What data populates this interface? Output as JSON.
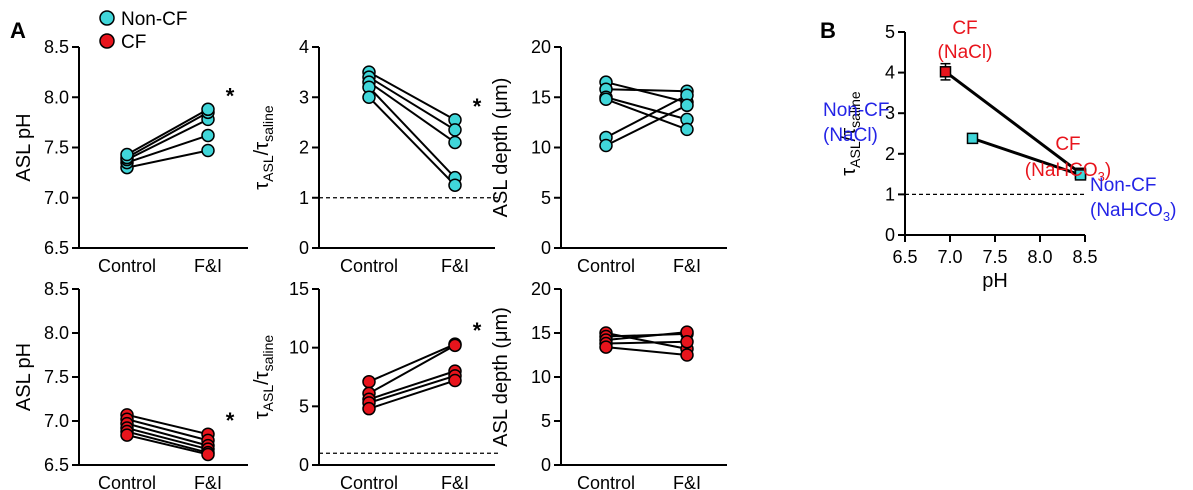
{
  "panel_labels": [
    "A",
    "B"
  ],
  "legend": {
    "items": [
      {
        "label": "Non-CF",
        "color": "#40d6d9"
      },
      {
        "label": "CF",
        "color": "#e8141c"
      }
    ]
  },
  "colors": {
    "noncf": "#40d6d9",
    "cf": "#e8141c",
    "blue_label": "#2424e6",
    "red_label": "#e8141c",
    "line": "#000000"
  },
  "tau_label": {
    "base": "τ",
    "sub1": "ASL",
    "slash": "/τ",
    "sub2": "saline"
  },
  "chart_data": [
    {
      "type": "line",
      "group": "Non-CF",
      "categories": [
        "Control",
        "F&I"
      ],
      "ylabel": "ASL pH",
      "ylim": [
        6.5,
        8.5
      ],
      "yticks": [
        "6.5",
        "7.0",
        "7.5",
        "8.0",
        "8.5"
      ],
      "significance": "*",
      "reference_line": null,
      "series": [
        {
          "values": [
            7.3,
            7.47
          ]
        },
        {
          "values": [
            7.35,
            7.62
          ]
        },
        {
          "values": [
            7.38,
            7.78
          ]
        },
        {
          "values": [
            7.4,
            7.85
          ]
        },
        {
          "values": [
            7.43,
            7.88
          ]
        }
      ]
    },
    {
      "type": "line",
      "group": "Non-CF",
      "categories": [
        "Control",
        "F&I"
      ],
      "ylabel": "τASL/τsaline",
      "ylim": [
        0,
        4
      ],
      "yticks": [
        "0",
        "1",
        "2",
        "3",
        "4"
      ],
      "significance": "*",
      "reference_line": 1,
      "series": [
        {
          "values": [
            3.5,
            2.55
          ]
        },
        {
          "values": [
            3.4,
            2.35
          ]
        },
        {
          "values": [
            3.3,
            2.1
          ]
        },
        {
          "values": [
            3.2,
            1.4
          ]
        },
        {
          "values": [
            3.0,
            1.25
          ]
        }
      ]
    },
    {
      "type": "line",
      "group": "Non-CF",
      "categories": [
        "Control",
        "F&I"
      ],
      "ylabel": "ASL depth (μm)",
      "ylim": [
        0,
        20
      ],
      "yticks": [
        "0",
        "5",
        "10",
        "15",
        "20"
      ],
      "significance": "",
      "reference_line": null,
      "series": [
        {
          "values": [
            16.5,
            14.5
          ]
        },
        {
          "values": [
            15.8,
            15.6
          ]
        },
        {
          "values": [
            15.0,
            12.8
          ]
        },
        {
          "values": [
            14.8,
            11.8
          ]
        },
        {
          "values": [
            11.0,
            15.2
          ]
        },
        {
          "values": [
            10.2,
            14.2
          ]
        }
      ]
    },
    {
      "type": "line",
      "group": "CF",
      "categories": [
        "Control",
        "F&I"
      ],
      "ylabel": "ASL pH",
      "ylim": [
        6.5,
        8.5
      ],
      "yticks": [
        "6.5",
        "7.0",
        "7.5",
        "8.0",
        "8.5"
      ],
      "significance": "*",
      "reference_line": null,
      "series": [
        {
          "values": [
            7.07,
            6.85
          ]
        },
        {
          "values": [
            7.02,
            6.78
          ]
        },
        {
          "values": [
            6.97,
            6.72
          ]
        },
        {
          "values": [
            6.92,
            6.68
          ]
        },
        {
          "values": [
            6.88,
            6.64
          ]
        },
        {
          "values": [
            6.84,
            6.62
          ]
        }
      ]
    },
    {
      "type": "line",
      "group": "CF",
      "categories": [
        "Control",
        "F&I"
      ],
      "ylabel": "τASL/τsaline",
      "ylim": [
        0,
        15
      ],
      "yticks": [
        "0",
        "5",
        "10",
        "15"
      ],
      "significance": "*",
      "reference_line": 1,
      "series": [
        {
          "values": [
            7.1,
            10.3
          ]
        },
        {
          "values": [
            6.1,
            10.2
          ]
        },
        {
          "values": [
            5.6,
            8.0
          ]
        },
        {
          "values": [
            5.3,
            7.6
          ]
        },
        {
          "values": [
            4.8,
            7.2
          ]
        }
      ]
    },
    {
      "type": "line",
      "group": "CF",
      "categories": [
        "Control",
        "F&I"
      ],
      "ylabel": "ASL depth (μm)",
      "ylim": [
        0,
        20
      ],
      "yticks": [
        "0",
        "5",
        "10",
        "15",
        "20"
      ],
      "significance": "",
      "reference_line": null,
      "series": [
        {
          "values": [
            15.0,
            13.2
          ]
        },
        {
          "values": [
            14.6,
            14.9
          ]
        },
        {
          "values": [
            14.2,
            15.1
          ]
        },
        {
          "values": [
            13.8,
            14.0
          ]
        },
        {
          "values": [
            13.4,
            12.5
          ]
        }
      ]
    },
    {
      "type": "scatter",
      "xlabel": "pH",
      "ylabel": "τASL/τsaline",
      "xlim": [
        6.5,
        8.5
      ],
      "ylim": [
        0,
        5
      ],
      "xticks": [
        "6.5",
        "7.0",
        "7.5",
        "8.0",
        "8.5"
      ],
      "yticks": [
        "0",
        "1",
        "2",
        "3",
        "4",
        "5"
      ],
      "reference_line": 1,
      "series": [
        {
          "group": "CF",
          "x": [
            6.95,
            8.45
          ],
          "y": [
            4.02,
            1.52
          ],
          "yerr": [
            0.2,
            0.1
          ]
        },
        {
          "group": "Non-CF",
          "x": [
            7.25,
            8.45
          ],
          "y": [
            2.38,
            1.48
          ],
          "yerr": [
            0.08,
            0.06
          ]
        }
      ],
      "annotations": [
        {
          "text": "CF",
          "color": "red"
        },
        {
          "text": "(NaCl)",
          "color": "red"
        },
        {
          "text": "CF",
          "color": "red"
        },
        {
          "text": "(NaHCO",
          "sub": "3",
          "close": ")",
          "color": "red"
        },
        {
          "text": "Non-CF",
          "color": "blue"
        },
        {
          "text": "(NaCl)",
          "color": "blue"
        },
        {
          "text": "Non-CF",
          "color": "blue"
        },
        {
          "text": "(NaHCO",
          "sub": "3",
          "close": ")",
          "color": "blue"
        }
      ]
    }
  ]
}
